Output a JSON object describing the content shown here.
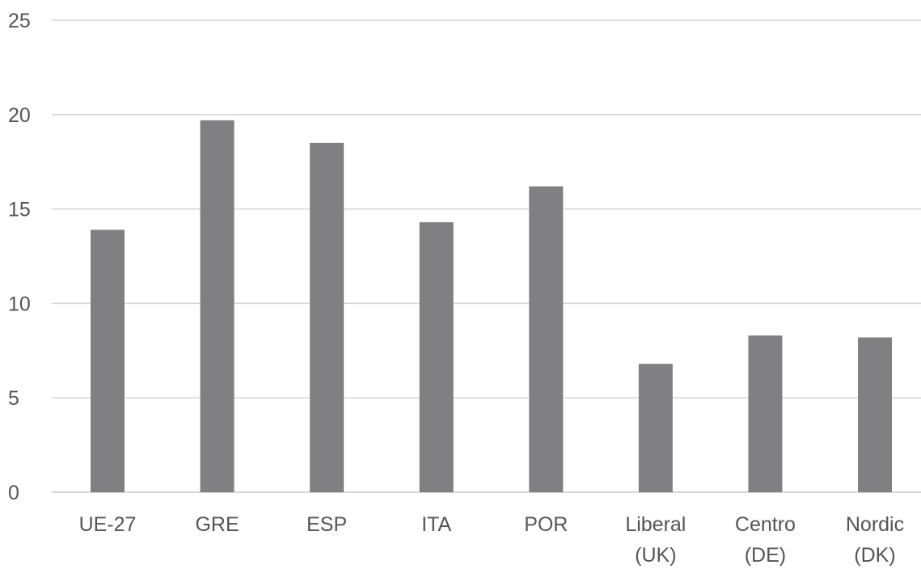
{
  "chart_data": {
    "type": "bar",
    "title": "",
    "xlabel": "",
    "ylabel": "",
    "ylim": [
      0,
      25
    ],
    "yticks": [
      "0",
      "5",
      "10",
      "15",
      "20",
      "25"
    ],
    "grid": true,
    "legend": "none",
    "categories": [
      [
        "UE-27"
      ],
      [
        "GRE"
      ],
      [
        "ESP"
      ],
      [
        "ITA"
      ],
      [
        "POR"
      ],
      [
        "Liberal",
        "(UK)"
      ],
      [
        "Centro",
        "(DE)"
      ],
      [
        "Nordic",
        "(DK)"
      ]
    ],
    "values": [
      13.9,
      19.7,
      18.5,
      14.3,
      16.2,
      6.8,
      8.3,
      8.2
    ],
    "colors": {
      "bar": "#808082",
      "grid": "#d6d6d6",
      "text": "#555555"
    }
  }
}
